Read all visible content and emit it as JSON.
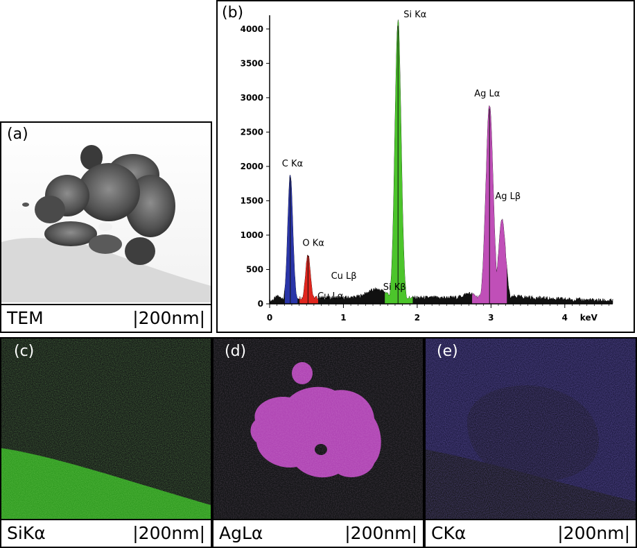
{
  "panels": {
    "a": {
      "label": "(a)",
      "caption_left": "TEM",
      "caption_right": "|200nm|"
    },
    "b": {
      "label": "(b)"
    },
    "c": {
      "label": "(c)",
      "caption_left": "SiKα",
      "caption_right": "|200nm|",
      "color": "#3fb52a"
    },
    "d": {
      "label": "(d)",
      "caption_left": "AgLα",
      "caption_right": "|200nm|",
      "color": "#b046b4"
    },
    "e": {
      "label": "(e)",
      "caption_left": "CKα",
      "caption_right": "|200nm|",
      "color": "#3a2fa0"
    }
  },
  "chart_data": {
    "type": "area",
    "title": "",
    "xlabel": "keV",
    "ylabel": "",
    "xlim": [
      0,
      4.65
    ],
    "ylim": [
      0,
      4200
    ],
    "x_ticks": [
      0,
      1,
      2,
      3,
      4
    ],
    "y_ticks": [
      0,
      500,
      1000,
      1500,
      2000,
      2500,
      3000,
      3500,
      4000
    ],
    "grid": false,
    "peaks": [
      {
        "label": "C Kα",
        "energy": 0.28,
        "height": 1880,
        "color": "#2a35a8",
        "range": [
          0.2,
          0.38
        ]
      },
      {
        "label": "O Kα",
        "energy": 0.52,
        "height": 720,
        "color": "#e0261e",
        "range": [
          0.4,
          0.66
        ]
      },
      {
        "label": "Cu Lα",
        "energy": 0.93,
        "height": 250,
        "color": null
      },
      {
        "label": "Cu Lβ",
        "energy": 1.02,
        "height": 260,
        "color": null
      },
      {
        "label": "Si Kα",
        "energy": 1.74,
        "height": 4130,
        "color": "#4cc52b",
        "range": [
          1.56,
          1.94
        ]
      },
      {
        "label": "Si Kβ",
        "energy": 1.83,
        "height": 150,
        "color": null
      },
      {
        "label": "Ag Lα",
        "energy": 2.98,
        "height": 2900,
        "color": "#c04fb8",
        "range": [
          2.74,
          3.22
        ]
      },
      {
        "label": "Ag Lβ",
        "energy": 3.15,
        "height": 1220,
        "color": null
      }
    ]
  }
}
